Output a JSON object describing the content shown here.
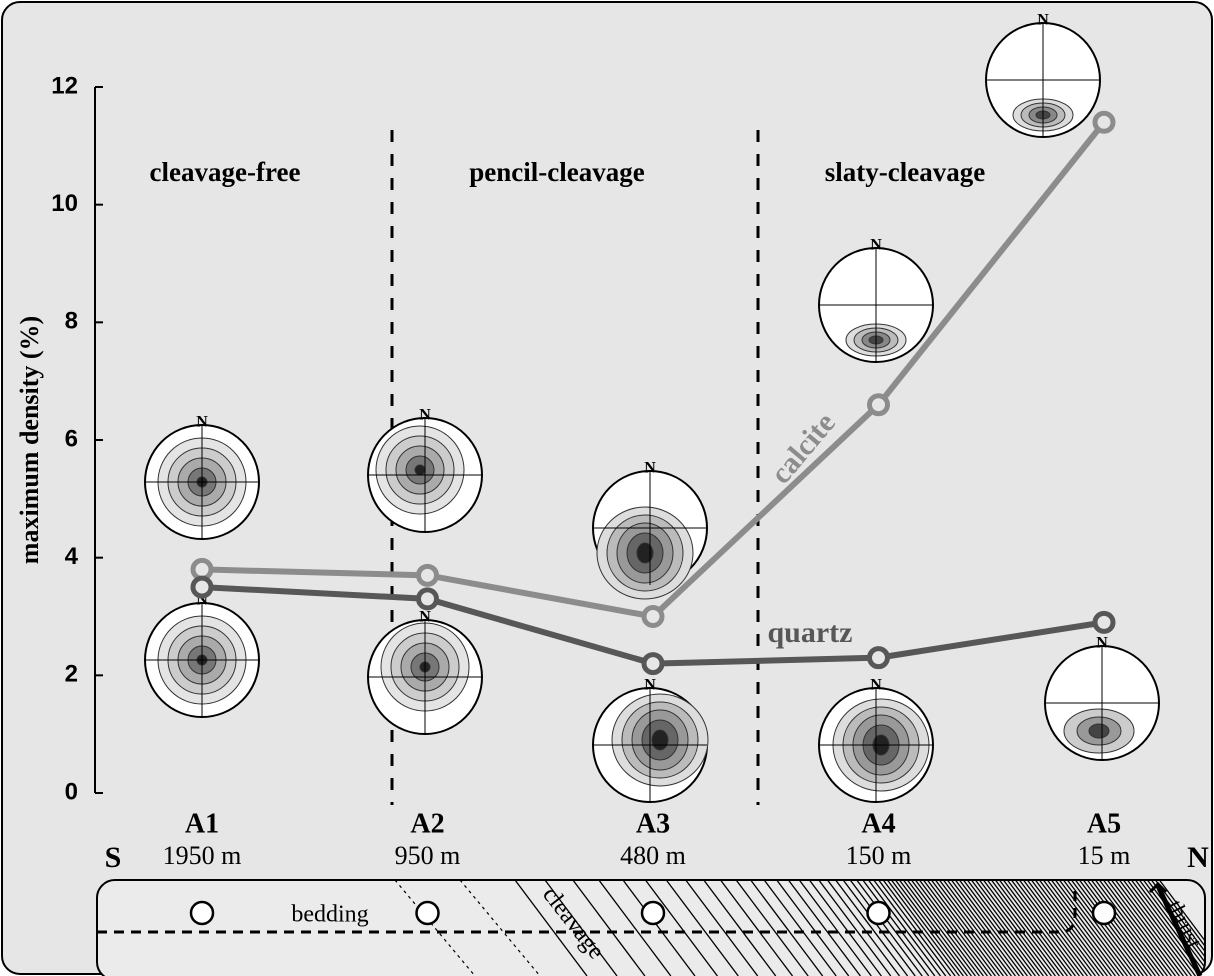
{
  "chart_data": {
    "type": "line",
    "y_label": "maximum density (%)",
    "categories": [
      "A1",
      "A2",
      "A3",
      "A4",
      "A5"
    ],
    "distances": [
      "1950 m",
      "950 m",
      "480 m",
      "150 m",
      "15 m"
    ],
    "series": [
      {
        "name": "calcite",
        "color": "#8c8c8c",
        "values": [
          3.8,
          3.7,
          3.0,
          6.6,
          11.4
        ]
      },
      {
        "name": "quartz",
        "color": "#575757",
        "values": [
          3.5,
          3.3,
          2.2,
          2.3,
          2.9
        ]
      }
    ],
    "ylim": [
      0,
      12
    ],
    "yticks": [
      0,
      2,
      4,
      6,
      8,
      10,
      12
    ],
    "zones": [
      "cleavage-free",
      "pencil-cleavage",
      "slaty-cleavage"
    ],
    "stereonet_north": "N",
    "section": {
      "south": "S",
      "north": "N",
      "bedding": "bedding",
      "cleavage": "cleavage",
      "thrust": "thrust"
    }
  }
}
